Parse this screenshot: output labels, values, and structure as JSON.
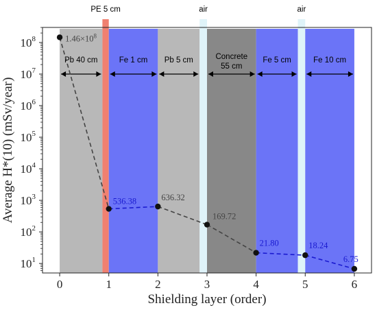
{
  "chart_data": {
    "type": "line",
    "xlabel": "Shielding layer (order)",
    "ylabel": "Average H*(10) (mSv/year)",
    "y_scale": "log",
    "xlim": [
      -0.35,
      6.35
    ],
    "ylim": [
      5,
      300000000
    ],
    "x_ticks": [
      0,
      1,
      2,
      3,
      4,
      5,
      6
    ],
    "y_ticks": [
      {
        "value": 10,
        "base": "10",
        "exp": "1"
      },
      {
        "value": 100,
        "base": "10",
        "exp": "2"
      },
      {
        "value": 1000,
        "base": "10",
        "exp": "3"
      },
      {
        "value": 10000,
        "base": "10",
        "exp": "4"
      },
      {
        "value": 100000,
        "base": "10",
        "exp": "5"
      },
      {
        "value": 1000000,
        "base": "10",
        "exp": "6"
      },
      {
        "value": 10000000,
        "base": "10",
        "exp": "7"
      },
      {
        "value": 100000000,
        "base": "10",
        "exp": "8"
      }
    ],
    "bands": [
      {
        "from": 0,
        "to": 0.87,
        "color": "#b8b8b8",
        "label": "Pb 40 cm",
        "label2": ""
      },
      {
        "from": 0.87,
        "to": 1.0,
        "color": "#f08070",
        "label": "",
        "label2": "",
        "top_label": "PE 5 cm"
      },
      {
        "from": 1.0,
        "to": 2.0,
        "color": "#6b74f7",
        "label": "Fe 1 cm",
        "label2": ""
      },
      {
        "from": 2.0,
        "to": 2.85,
        "color": "#b8b8b8",
        "label": "Pb 5 cm",
        "label2": ""
      },
      {
        "from": 2.85,
        "to": 3.0,
        "color": "#dff3f9",
        "label": "",
        "label2": "",
        "top_label": "air"
      },
      {
        "from": 3.0,
        "to": 4.0,
        "color": "#888888",
        "label": "Concrete",
        "label2": "55 cm"
      },
      {
        "from": 4.0,
        "to": 4.85,
        "color": "#6b74f7",
        "label": "Fe 5 cm",
        "label2": ""
      },
      {
        "from": 4.85,
        "to": 5.0,
        "color": "#dff3f9",
        "label": "",
        "label2": "",
        "top_label": "air"
      },
      {
        "from": 5.0,
        "to": 6.0,
        "color": "#6b74f7",
        "label": "Fe 10 cm",
        "label2": ""
      }
    ],
    "series": [
      {
        "x": [
          0,
          1,
          2,
          3,
          4,
          5,
          6
        ],
        "values": [
          146000000,
          536.38,
          636.32,
          169.72,
          21.8,
          18.24,
          6.75
        ]
      }
    ],
    "data_labels": [
      {
        "text": "1.46×10",
        "sup": "8",
        "color": "#444444"
      },
      {
        "text": "536.38",
        "sup": "",
        "color": "#1a1ad0"
      },
      {
        "text": "636.32",
        "sup": "",
        "color": "#444444"
      },
      {
        "text": "169.72",
        "sup": "",
        "color": "#444444"
      },
      {
        "text": "21.80",
        "sup": "",
        "color": "#1a1ad0"
      },
      {
        "text": "18.24",
        "sup": "",
        "color": "#1a1ad0"
      },
      {
        "text": "6.75",
        "sup": "",
        "color": "#1a1ad0"
      }
    ],
    "segment_colors": [
      "#444444",
      "#1a1ad0",
      "#444444",
      "#444444",
      "#1a1ad0",
      "#1a1ad0"
    ],
    "grid": false,
    "legend": "none"
  }
}
